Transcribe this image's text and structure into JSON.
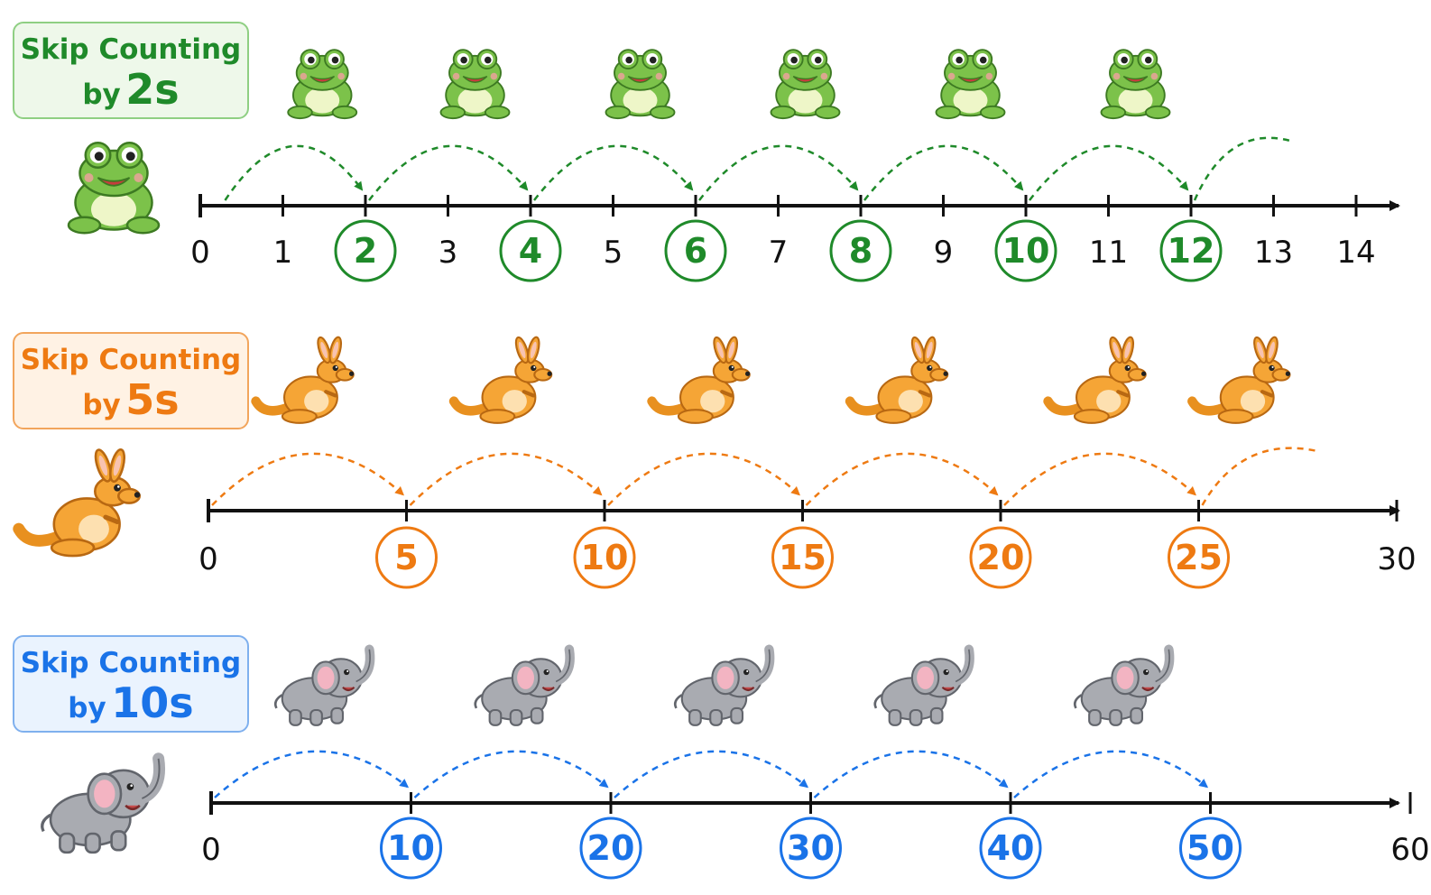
{
  "rows": [
    {
      "id": "by2",
      "title_line1": "Skip Counting",
      "title_by": "by",
      "title_num": "2s",
      "animal": "frog",
      "color": "#1f8a2a",
      "box_bg": "#eef8ea",
      "box_border": "#8fcf83",
      "labels": [
        "0",
        "1",
        "2",
        "3",
        "4",
        "5",
        "6",
        "7",
        "8",
        "9",
        "10",
        "11",
        "12",
        "13",
        "14"
      ],
      "highlighted": [
        "2",
        "4",
        "6",
        "8",
        "10",
        "12"
      ]
    },
    {
      "id": "by5",
      "title_line1": "Skip Counting",
      "title_by": "by",
      "title_num": "5s",
      "animal": "kangaroo",
      "color": "#ee7a12",
      "box_bg": "#fff2e4",
      "box_border": "#f2a55c",
      "labels": [
        "0",
        "5",
        "10",
        "15",
        "20",
        "25",
        "30"
      ],
      "highlighted": [
        "5",
        "10",
        "15",
        "20",
        "25"
      ]
    },
    {
      "id": "by10",
      "title_line1": "Skip Counting",
      "title_by": "by",
      "title_num": "10s",
      "animal": "elephant",
      "color": "#1a73e8",
      "box_bg": "#eaf3fe",
      "box_border": "#7fb0ee",
      "labels": [
        "0",
        "10",
        "20",
        "30",
        "40",
        "50",
        "60"
      ],
      "highlighted": [
        "10",
        "20",
        "30",
        "40",
        "50"
      ]
    }
  ]
}
